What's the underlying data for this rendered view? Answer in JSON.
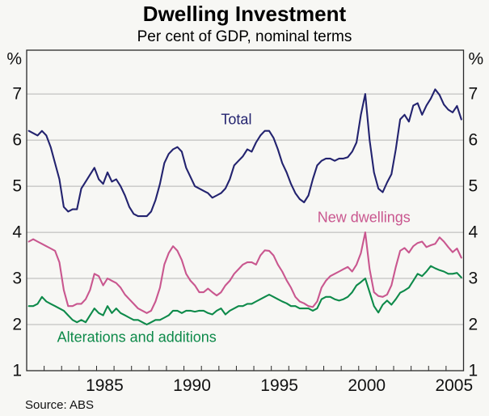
{
  "header": {
    "title": "Dwelling Investment",
    "subtitle": "Per cent of GDP, nominal terms"
  },
  "footer": {
    "source": "Source: ABS"
  },
  "colors": {
    "background": "#f7f7f4",
    "grid": "#b5b5b5",
    "axis": "#2a2a2a",
    "text": "#111111",
    "total": "#23236f",
    "new_dwellings": "#c9578f",
    "alterations": "#0e8a4a"
  },
  "chart_data": {
    "type": "line",
    "title": "Dwelling Investment",
    "subtitle": "Per cent of GDP, nominal terms",
    "xlabel": "",
    "ylabel_left": "%",
    "ylabel_right": "%",
    "grid": true,
    "legend_position": "inline-labels",
    "x_frequency": "quarterly",
    "x_start": 1981.125,
    "x_step": 0.25,
    "xlim": [
      1981,
      2006
    ],
    "ylim": [
      1,
      7.95
    ],
    "yticks": [
      {
        "label": "7",
        "value": 7
      },
      {
        "label": "6",
        "value": 6
      },
      {
        "label": "5",
        "value": 5
      },
      {
        "label": "4",
        "value": 4
      },
      {
        "label": "3",
        "value": 3
      },
      {
        "label": "2",
        "value": 2
      },
      {
        "label": "1",
        "value": 1
      }
    ],
    "gridline_values": [
      7,
      6,
      5,
      4,
      3,
      2
    ],
    "xtick_labels": [
      {
        "label": "1985",
        "x": 1985.46
      },
      {
        "label": "1990",
        "x": 1990.46
      },
      {
        "label": "1995",
        "x": 1995.46
      },
      {
        "label": "2000",
        "x": 2000.46
      },
      {
        "label": "2005",
        "x": 2005.46
      }
    ],
    "series": [
      {
        "name": "Total",
        "color": "#23236f",
        "label": {
          "text": "Total",
          "x": 1993.0,
          "y": 6.45
        },
        "values": [
          6.2,
          6.15,
          6.1,
          6.2,
          6.1,
          5.85,
          5.5,
          5.15,
          4.55,
          4.45,
          4.5,
          4.5,
          4.95,
          5.1,
          5.25,
          5.4,
          5.15,
          5.05,
          5.3,
          5.1,
          5.15,
          5.0,
          4.8,
          4.55,
          4.4,
          4.35,
          4.35,
          4.35,
          4.45,
          4.7,
          5.05,
          5.5,
          5.7,
          5.8,
          5.85,
          5.75,
          5.4,
          5.2,
          5.0,
          4.95,
          4.9,
          4.85,
          4.75,
          4.8,
          4.85,
          4.95,
          5.15,
          5.45,
          5.55,
          5.65,
          5.8,
          5.75,
          5.95,
          6.1,
          6.2,
          6.2,
          6.05,
          5.8,
          5.5,
          5.3,
          5.05,
          4.85,
          4.72,
          4.65,
          4.8,
          5.15,
          5.45,
          5.55,
          5.6,
          5.6,
          5.55,
          5.6,
          5.6,
          5.63,
          5.75,
          5.95,
          6.55,
          7.0,
          6.0,
          5.3,
          4.95,
          4.87,
          5.08,
          5.26,
          5.8,
          6.45,
          6.55,
          6.4,
          6.75,
          6.8,
          6.55,
          6.75,
          6.9,
          7.1,
          6.98,
          6.77,
          6.66,
          6.6,
          6.74,
          6.45
        ]
      },
      {
        "name": "New dwellings",
        "color": "#c9578f",
        "label": {
          "text": "New dwellings",
          "x": 2000.3,
          "y": 4.33
        },
        "values": [
          3.8,
          3.85,
          3.8,
          3.75,
          3.7,
          3.65,
          3.6,
          3.35,
          2.75,
          2.4,
          2.4,
          2.45,
          2.45,
          2.55,
          2.75,
          3.1,
          3.05,
          2.85,
          3.0,
          2.95,
          2.9,
          2.8,
          2.65,
          2.55,
          2.45,
          2.35,
          2.3,
          2.25,
          2.3,
          2.5,
          2.8,
          3.3,
          3.55,
          3.7,
          3.6,
          3.4,
          3.1,
          2.95,
          2.85,
          2.7,
          2.7,
          2.78,
          2.7,
          2.63,
          2.7,
          2.85,
          2.95,
          3.1,
          3.2,
          3.3,
          3.35,
          3.35,
          3.3,
          3.5,
          3.61,
          3.6,
          3.5,
          3.3,
          3.15,
          2.96,
          2.8,
          2.6,
          2.5,
          2.46,
          2.4,
          2.38,
          2.5,
          2.8,
          2.95,
          3.05,
          3.1,
          3.15,
          3.2,
          3.25,
          3.15,
          3.3,
          3.55,
          4.0,
          3.2,
          2.7,
          2.62,
          2.6,
          2.65,
          2.85,
          3.25,
          3.6,
          3.66,
          3.56,
          3.7,
          3.77,
          3.8,
          3.68,
          3.72,
          3.75,
          3.89,
          3.8,
          3.68,
          3.57,
          3.65,
          3.45
        ]
      },
      {
        "name": "Alterations and additions",
        "color": "#0e8a4a",
        "label": {
          "text": "Alterations and additions",
          "x": 1987.3,
          "y": 1.73
        },
        "values": [
          2.4,
          2.4,
          2.45,
          2.6,
          2.5,
          2.45,
          2.4,
          2.35,
          2.3,
          2.2,
          2.1,
          2.05,
          2.1,
          2.05,
          2.2,
          2.35,
          2.25,
          2.2,
          2.4,
          2.25,
          2.35,
          2.25,
          2.2,
          2.15,
          2.1,
          2.1,
          2.05,
          2.0,
          2.05,
          2.1,
          2.1,
          2.15,
          2.2,
          2.3,
          2.3,
          2.25,
          2.3,
          2.3,
          2.28,
          2.3,
          2.3,
          2.25,
          2.22,
          2.3,
          2.35,
          2.22,
          2.3,
          2.35,
          2.4,
          2.4,
          2.45,
          2.45,
          2.5,
          2.55,
          2.6,
          2.65,
          2.6,
          2.55,
          2.5,
          2.46,
          2.4,
          2.4,
          2.35,
          2.35,
          2.35,
          2.3,
          2.35,
          2.55,
          2.6,
          2.6,
          2.55,
          2.52,
          2.55,
          2.6,
          2.7,
          2.85,
          2.92,
          3.0,
          2.7,
          2.4,
          2.26,
          2.43,
          2.52,
          2.43,
          2.55,
          2.69,
          2.74,
          2.8,
          2.95,
          3.1,
          3.05,
          3.15,
          3.27,
          3.22,
          3.18,
          3.15,
          3.1,
          3.1,
          3.12,
          3.02
        ]
      }
    ]
  }
}
